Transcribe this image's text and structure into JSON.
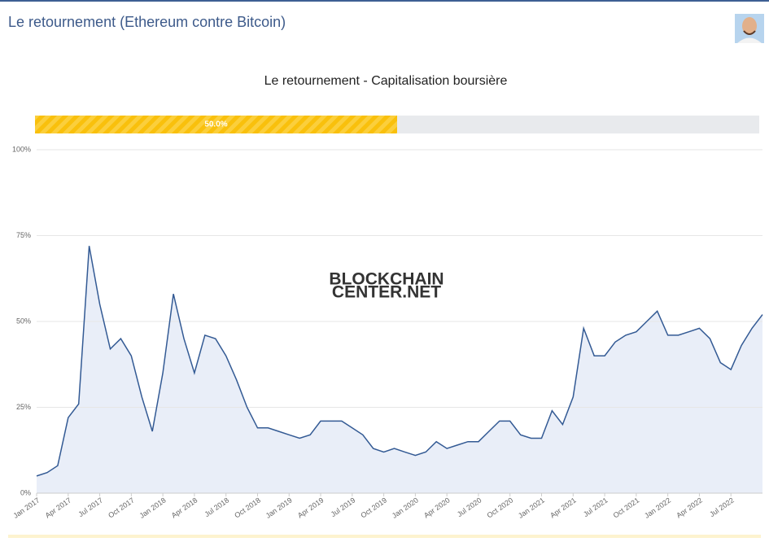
{
  "header": {
    "title": "Le retournement (Ethereum contre Bitcoin)"
  },
  "progress": {
    "value": 50,
    "label": "50.0%"
  },
  "watermark": [
    "BLOCKCHAIN",
    "CENTER.NET"
  ],
  "chart_data": {
    "type": "area",
    "title": "Le retournement - Capitalisation boursière",
    "color": "#335a94",
    "fill": "#e9eef8",
    "grid": true,
    "x": [
      "2017-01",
      "2017-02",
      "2017-03",
      "2017-04",
      "2017-05",
      "2017-06",
      "2017-07",
      "2017-08",
      "2017-09",
      "2017-10",
      "2017-11",
      "2017-12",
      "2018-01",
      "2018-02",
      "2018-03",
      "2018-04",
      "2018-05",
      "2018-06",
      "2018-07",
      "2018-08",
      "2018-09",
      "2018-10",
      "2018-11",
      "2018-12",
      "2019-01",
      "2019-02",
      "2019-03",
      "2019-04",
      "2019-05",
      "2019-06",
      "2019-07",
      "2019-08",
      "2019-09",
      "2019-10",
      "2019-11",
      "2019-12",
      "2020-01",
      "2020-02",
      "2020-03",
      "2020-04",
      "2020-05",
      "2020-06",
      "2020-07",
      "2020-08",
      "2020-09",
      "2020-10",
      "2020-11",
      "2020-12",
      "2021-01",
      "2021-02",
      "2021-03",
      "2021-04",
      "2021-05",
      "2021-06",
      "2021-07",
      "2021-08",
      "2021-09",
      "2021-10",
      "2021-11",
      "2021-12",
      "2022-01",
      "2022-02",
      "2022-03",
      "2022-04",
      "2022-05",
      "2022-06",
      "2022-07",
      "2022-08",
      "2022-09",
      "2022-10"
    ],
    "values": [
      5,
      6,
      8,
      22,
      26,
      72,
      55,
      42,
      45,
      40,
      28,
      18,
      35,
      58,
      45,
      35,
      46,
      45,
      40,
      33,
      25,
      19,
      19,
      18,
      17,
      16,
      17,
      21,
      21,
      21,
      19,
      17,
      13,
      12,
      13,
      12,
      11,
      12,
      15,
      13,
      14,
      15,
      15,
      18,
      21,
      21,
      17,
      16,
      16,
      24,
      20,
      28,
      48,
      40,
      40,
      44,
      46,
      47,
      50,
      53,
      46,
      46,
      47,
      48,
      45,
      38,
      36,
      43,
      48,
      52
    ],
    "xlim": [
      "2017-01",
      "2022-10"
    ],
    "xticks": [
      {
        "value": "2017-01",
        "label": "Jan 2017"
      },
      {
        "value": "2017-04",
        "label": "Apr 2017"
      },
      {
        "value": "2017-07",
        "label": "Jul 2017"
      },
      {
        "value": "2017-10",
        "label": "Oct 2017"
      },
      {
        "value": "2018-01",
        "label": "Jan 2018"
      },
      {
        "value": "2018-04",
        "label": "Apr 2018"
      },
      {
        "value": "2018-07",
        "label": "Jul 2018"
      },
      {
        "value": "2018-10",
        "label": "Oct 2018"
      },
      {
        "value": "2019-01",
        "label": "Jan 2019"
      },
      {
        "value": "2019-04",
        "label": "Apr 2019"
      },
      {
        "value": "2019-07",
        "label": "Jul 2019"
      },
      {
        "value": "2019-10",
        "label": "Oct 2019"
      },
      {
        "value": "2020-01",
        "label": "Jan 2020"
      },
      {
        "value": "2020-04",
        "label": "Apr 2020"
      },
      {
        "value": "2020-07",
        "label": "Jul 2020"
      },
      {
        "value": "2020-10",
        "label": "Oct 2020"
      },
      {
        "value": "2021-01",
        "label": "Jan 2021"
      },
      {
        "value": "2021-04",
        "label": "Apr 2021"
      },
      {
        "value": "2021-07",
        "label": "Jul 2021"
      },
      {
        "value": "2021-10",
        "label": "Oct 2021"
      },
      {
        "value": "2022-01",
        "label": "Jan 2022"
      },
      {
        "value": "2022-04",
        "label": "Apr 2022"
      },
      {
        "value": "2022-07",
        "label": "Jul 2022"
      }
    ],
    "ylim": [
      0,
      100
    ],
    "yticks": [
      {
        "value": 0,
        "label": "0%"
      },
      {
        "value": 25,
        "label": "25%"
      },
      {
        "value": 50,
        "label": "50%"
      },
      {
        "value": 75,
        "label": "75%"
      },
      {
        "value": 100,
        "label": "100%"
      }
    ]
  }
}
